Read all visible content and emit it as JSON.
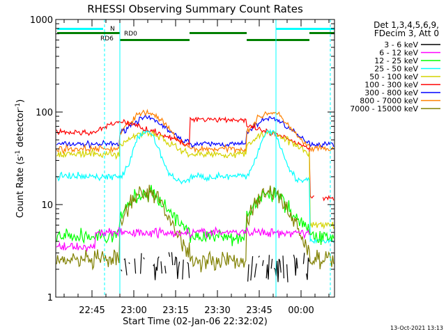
{
  "chart_data": {
    "type": "line",
    "title": "RHESSI Observing Summary Count Rates",
    "xlabel": "Start Time (02-Jan-06 22:32:02)",
    "ylabel_parts": [
      "Count Rate (s",
      "-1",
      " detector",
      "-1",
      ")"
    ],
    "yscale": "log",
    "ylim": [
      1,
      1000
    ],
    "xlim_minutes_since_2232": [
      0,
      100
    ],
    "x_tick_labels": [
      "22:45",
      "23:00",
      "23:15",
      "23:30",
      "23:45",
      "00:00"
    ],
    "y_tick_labels": [
      "1",
      "10",
      "100",
      "1000"
    ],
    "legend_header": [
      "Det 1,3,4,5,6,9,",
      "FDecim 3, Att 0"
    ],
    "legend_position": "right, outside plot",
    "timestamp": "13-Oct-2021 13:13",
    "flags": [
      {
        "label": "N",
        "color": "#00ffff"
      },
      {
        "label": "RD0",
        "color": "#008000"
      },
      {
        "label": "RD6",
        "color": "#008000"
      }
    ],
    "series": [
      {
        "name": "3 - 6 keV",
        "color": "#000000"
      },
      {
        "name": "6 - 12 keV",
        "color": "#ff00ff"
      },
      {
        "name": "12 - 25 keV",
        "color": "#00ff00"
      },
      {
        "name": "25 - 50 keV",
        "color": "#00ffff"
      },
      {
        "name": "50 - 100 keV",
        "color": "#d4d400"
      },
      {
        "name": "100 - 300 keV",
        "color": "#ff0000"
      },
      {
        "name": "300 - 800 keV",
        "color": "#0000ff"
      },
      {
        "name": "800 - 7000 keV",
        "color": "#ff8000"
      },
      {
        "name": "7000 - 15000 keV",
        "color": "#808000"
      }
    ],
    "approximate_levels": {
      "300 - 800 keV": {
        "night": 45,
        "day_peak": 85
      },
      "800 - 7000 keV": {
        "night": 38,
        "day_peak": 100
      },
      "100 - 300 keV": {
        "day_high": 85,
        "night": 60
      },
      "25 - 50 keV": {
        "night": 20,
        "day_peak": 60
      },
      "12 - 25 keV": {
        "night": 4.5,
        "day_peak": 12
      },
      "7000 - 15000 keV": {
        "night": 2.5,
        "day_peak": 13
      },
      "6 - 12 keV": {
        "typical": 5
      },
      "3 - 6 keV": {
        "typical": 1.5
      }
    }
  }
}
